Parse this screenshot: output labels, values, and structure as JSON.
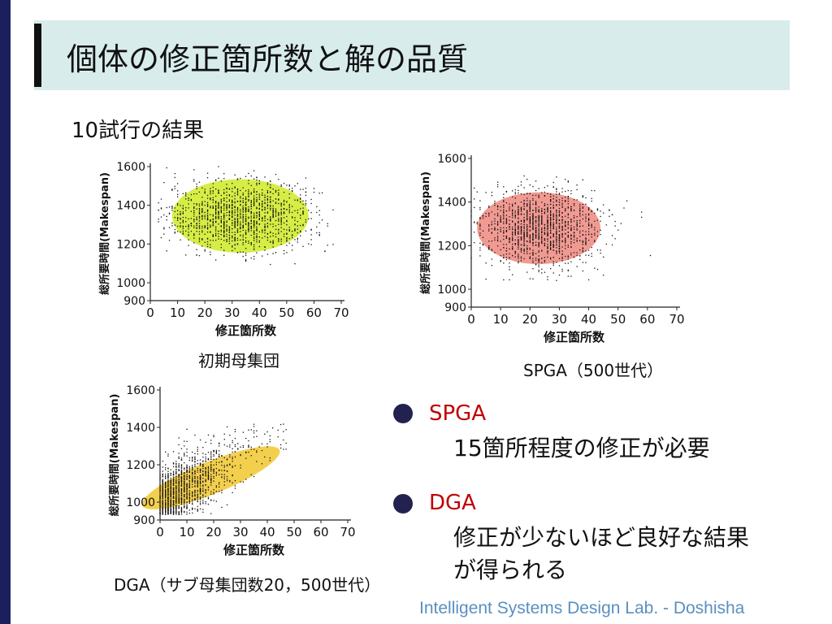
{
  "slide": {
    "title": "個体の修正箇所数と解の品質",
    "subtitle": "10試行の結果",
    "footer": "Intelligent Systems Design Lab. - Doshisha"
  },
  "colors": {
    "title_bar": "#d8ecec",
    "left_band": "#1b1f5e",
    "accent_red": "#c00000",
    "footer_blue": "#5a8fc0"
  },
  "bullets": [
    {
      "title": "SPGA",
      "desc_lines": [
        "15箇所程度の修正が必要"
      ]
    },
    {
      "title": "DGA",
      "desc_lines": [
        "修正が少ないほど良好な結果",
        "が得られる"
      ]
    }
  ],
  "chart_data": [
    {
      "type": "scatter",
      "caption": "初期母集団",
      "xlabel": "修正箇所数",
      "ylabel": "総所要時間(Makespan)",
      "xlim": [
        0,
        70
      ],
      "ylim": [
        900,
        1600
      ],
      "xticks": [
        0,
        10,
        20,
        30,
        40,
        50,
        60,
        70
      ],
      "yticks": [
        900,
        1000,
        1200,
        1400,
        1600
      ],
      "highlight": {
        "shape": "ellipse",
        "color": "#d4ec3c",
        "cx": 33,
        "cy": 1345,
        "rx": 25,
        "ry": 190
      },
      "point_cloud": {
        "x_range": [
          3,
          67
        ],
        "y_range": [
          1090,
          1600
        ],
        "center": [
          33,
          1345
        ],
        "core_x": [
          8,
          58
        ],
        "core_y": [
          1190,
          1500
        ]
      }
    },
    {
      "type": "scatter",
      "caption": "SPGA（500世代）",
      "xlabel": "修正箇所数",
      "ylabel": "総所要時間(Makespan)",
      "xlim": [
        0,
        70
      ],
      "ylim": [
        900,
        1600
      ],
      "xticks": [
        0,
        10,
        20,
        30,
        40,
        50,
        60,
        70
      ],
      "yticks": [
        900,
        1000,
        1200,
        1400,
        1600
      ],
      "highlight": {
        "shape": "ellipse",
        "color": "#f0958c",
        "cx": 23,
        "cy": 1280,
        "rx": 21,
        "ry": 165
      },
      "point_cloud": {
        "x_range": [
          0,
          65
        ],
        "y_range": [
          1040,
          1520
        ],
        "center": [
          23,
          1280
        ],
        "core_x": [
          2,
          40
        ],
        "core_y": [
          1130,
          1440
        ]
      }
    },
    {
      "type": "scatter",
      "caption": "DGA（サブ母集団数20，500世代）",
      "xlabel": "修正箇所数",
      "ylabel": "総所要時間(Makespan)",
      "xlim": [
        0,
        70
      ],
      "ylim": [
        900,
        1600
      ],
      "xticks": [
        0,
        10,
        20,
        30,
        40,
        50,
        60,
        70
      ],
      "yticks": [
        900,
        1000,
        1200,
        1400,
        1600
      ],
      "highlight": {
        "shape": "tilted-ellipse",
        "color": "#f2cc44",
        "cx": 19,
        "cy": 1130,
        "rx": 24,
        "ry": 140
      },
      "point_cloud": {
        "x_range": [
          0,
          48
        ],
        "y_range": [
          920,
          1420
        ],
        "center": [
          16,
          1120
        ],
        "core_x": [
          0,
          30
        ],
        "core_y": [
          950,
          1300
        ]
      }
    }
  ]
}
